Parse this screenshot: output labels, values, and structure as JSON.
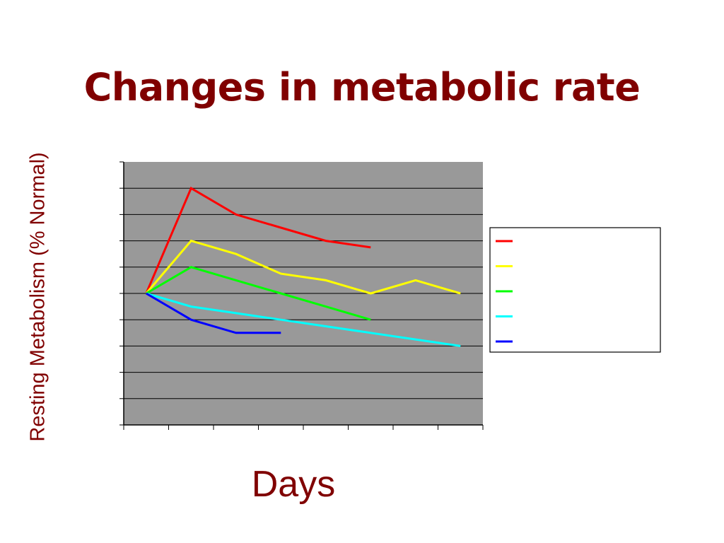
{
  "slide": {
    "title": "Changes in metabolic rate"
  },
  "chart_data": {
    "type": "line",
    "title": "Changes in metabolic rate",
    "xlabel": "Days",
    "ylabel": "Resting Metabolism (% Normal)",
    "x": [
      0,
      1,
      2,
      3,
      4,
      5,
      6,
      7
    ],
    "xlim": [
      -0.5,
      7.5
    ],
    "ylim": [
      0,
      10
    ],
    "grid": true,
    "plot_background": "#999999",
    "gridline_color": "#000000",
    "legend": {
      "position": "right",
      "entries_labeled": false
    },
    "series": [
      {
        "color": "#ff0000",
        "values": [
          5,
          9,
          8,
          7.5,
          7,
          6.75,
          null,
          null
        ]
      },
      {
        "color": "#ffff00",
        "values": [
          5,
          7,
          6.5,
          5.75,
          5.5,
          5,
          5.5,
          5
        ]
      },
      {
        "color": "#00ff00",
        "values": [
          5,
          6,
          5.5,
          5,
          4.5,
          4,
          null,
          null
        ]
      },
      {
        "color": "#00ffff",
        "values": [
          5,
          4.5,
          4.25,
          4,
          3.75,
          3.5,
          3.25,
          3
        ]
      },
      {
        "color": "#0000ff",
        "values": [
          5,
          4,
          3.5,
          3.5,
          null,
          null,
          null,
          null
        ]
      }
    ]
  }
}
